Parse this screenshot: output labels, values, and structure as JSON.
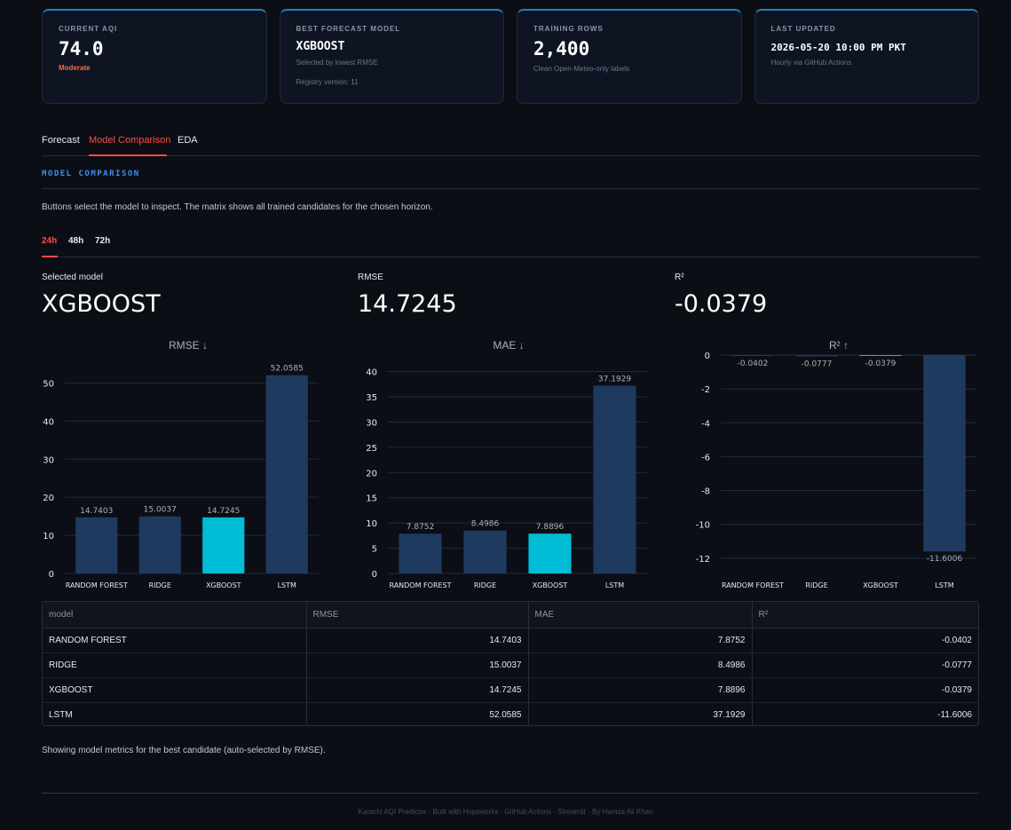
{
  "cards": [
    {
      "label": "CURRENT AQI",
      "value": "74.0",
      "sub": "Moderate",
      "sub2": ""
    },
    {
      "label": "BEST FORECAST MODEL",
      "value": "XGBOOST",
      "sub": "Selected by lowest RMSE",
      "sub2": "Registry version: 11"
    },
    {
      "label": "TRAINING ROWS",
      "value": "2,400",
      "sub": "Clean Open-Meteo-only labels",
      "sub2": ""
    },
    {
      "label": "LAST UPDATED",
      "value": "2026-05-20 10:00 PM PKT",
      "sub": "Hourly via GitHub Actions",
      "sub2": ""
    }
  ],
  "colors": {
    "accent": "#ff4b4b",
    "highlight": "#00bcd4",
    "bar": "#1e3a5f",
    "status_moderate": "#ff6b3d",
    "section_title": "#3d8ff0"
  },
  "tabs": [
    "Forecast",
    "Model Comparison",
    "EDA"
  ],
  "active_tab": "Model Comparison",
  "section": {
    "title": "MODEL COMPARISON",
    "description": "Buttons select the model to inspect. The matrix shows all trained candidates for the chosen horizon."
  },
  "horizons": [
    "24h",
    "48h",
    "72h"
  ],
  "active_horizon": "24h",
  "metrics": [
    {
      "label": "Selected model",
      "value": "XGBOOST"
    },
    {
      "label": "RMSE",
      "value": "14.7245"
    },
    {
      "label": "R²",
      "value": "-0.0379"
    }
  ],
  "chart_data": [
    {
      "type": "bar",
      "title": "RMSE ↓",
      "categories": [
        "RANDOM FOREST",
        "RIDGE",
        "XGBOOST",
        "LSTM"
      ],
      "values": [
        14.7403,
        15.0037,
        14.7245,
        52.0585
      ],
      "highlight": "XGBOOST",
      "ylim": [
        0,
        55
      ],
      "yticks": [
        0,
        10,
        20,
        30,
        40,
        50
      ]
    },
    {
      "type": "bar",
      "title": "MAE ↓",
      "categories": [
        "RANDOM FOREST",
        "RIDGE",
        "XGBOOST",
        "LSTM"
      ],
      "values": [
        7.8752,
        8.4986,
        7.8896,
        37.1929
      ],
      "highlight": "XGBOOST",
      "ylim": [
        0,
        41.5
      ],
      "yticks": [
        0,
        5,
        10,
        15,
        20,
        25,
        30,
        35,
        40
      ]
    },
    {
      "type": "bar",
      "title": "R² ↑",
      "categories": [
        "RANDOM FOREST",
        "RIDGE",
        "XGBOOST",
        "LSTM"
      ],
      "values": [
        -0.0402,
        -0.0777,
        -0.0379,
        -11.6006
      ],
      "highlight": "XGBOOST",
      "ylim": [
        -12.9,
        0
      ],
      "yticks": [
        0,
        -2,
        -4,
        -6,
        -8,
        -10,
        -12
      ]
    }
  ],
  "table": {
    "headers": [
      "model",
      "RMSE",
      "MAE",
      "R²"
    ],
    "rows": [
      [
        "RANDOM FOREST",
        "14.7403",
        "7.8752",
        "-0.0402"
      ],
      [
        "RIDGE",
        "15.0037",
        "8.4986",
        "-0.0777"
      ],
      [
        "XGBOOST",
        "14.7245",
        "7.8896",
        "-0.0379"
      ],
      [
        "LSTM",
        "52.0585",
        "37.1929",
        "-11.6006"
      ]
    ]
  },
  "note": "Showing model metrics for the best candidate (auto-selected by RMSE).",
  "footer": "Karachi AQI Predictor · Built with Hopsworks · GitHub Actions · Streamlit · By Hamza Ali Khan"
}
